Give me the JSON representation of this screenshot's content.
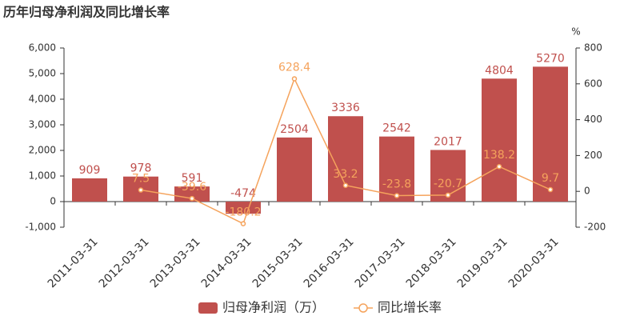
{
  "chart_data": {
    "type": "bar",
    "title": "历年归母净利润及同比增长率",
    "categories": [
      "2011-03-31",
      "2012-03-31",
      "2013-03-31",
      "2014-03-31",
      "2015-03-31",
      "2016-03-31",
      "2017-03-31",
      "2018-03-31",
      "2019-03-31",
      "2020-03-31"
    ],
    "series": [
      {
        "name": "归母净利润（万）",
        "type": "bar",
        "color": "#c0504d",
        "values": [
          909,
          978,
          591,
          -474,
          2504,
          3336,
          2542,
          2017,
          4804,
          5270
        ]
      },
      {
        "name": "同比增长率",
        "type": "line",
        "axis": "y2",
        "color": "#f5a35c",
        "values": [
          null,
          7.5,
          -39.6,
          -180.2,
          628.4,
          33.2,
          -23.8,
          -20.7,
          138.2,
          9.7
        ]
      }
    ],
    "ylim": [
      -1000,
      6000
    ],
    "yticks": [
      {
        "value": -1000,
        "label": "-1,000"
      },
      0,
      {
        "value": 1000,
        "label": "1,000"
      },
      {
        "value": 2000,
        "label": "2,000"
      },
      {
        "value": 3000,
        "label": "3,000"
      },
      {
        "value": 4000,
        "label": "4,000"
      },
      {
        "value": 5000,
        "label": "5,000"
      },
      {
        "value": 6000,
        "label": "6,000"
      }
    ],
    "y2label": "%",
    "y2lim": [
      -200,
      800
    ],
    "y2ticks": [
      -200,
      0,
      200,
      400,
      600,
      800
    ],
    "legend": "bottom"
  }
}
